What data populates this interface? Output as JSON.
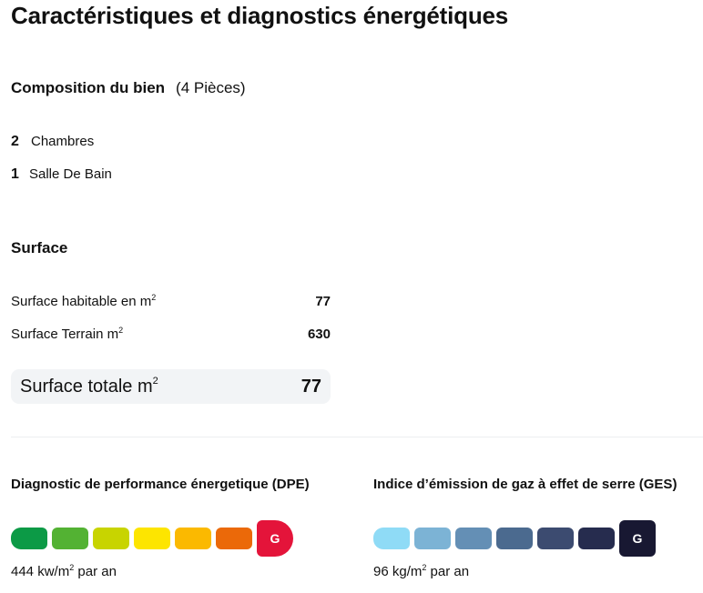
{
  "page": {
    "title": "Caractéristiques et diagnostics énergétiques"
  },
  "composition": {
    "title": "Composition du bien",
    "count": "(4 Pièces)",
    "rooms": [
      {
        "count": "2",
        "label": "Chambres"
      },
      {
        "count": "1",
        "label": "Salle De Bain"
      }
    ]
  },
  "surface": {
    "title": "Surface",
    "unit_sup": "2",
    "rows": [
      {
        "label": "Surface habitable en m",
        "value": "77"
      },
      {
        "label": "Surface Terrain m",
        "value": "630"
      }
    ],
    "total": {
      "label": "Surface totale m",
      "value": "77"
    }
  },
  "dpe": {
    "title": "Diagnostic de performance énergetique (DPE)",
    "rating": "G",
    "value_text": "444 kw/m",
    "value_suffix": " par an",
    "colors": [
      "#0c9a46",
      "#53b233",
      "#c8d400",
      "#fde500",
      "#fbb900",
      "#eb6909",
      "#e4143a"
    ]
  },
  "ges": {
    "title": "Indice d’émission de gaz à effet de serre (GES)",
    "rating": "G",
    "value_text": "96 kg/m",
    "value_suffix": " par an",
    "colors": [
      "#8fdbf6",
      "#7cb3d5",
      "#648fb5",
      "#4b6a8f",
      "#3c4b70",
      "#262c4e",
      "#181832"
    ]
  }
}
